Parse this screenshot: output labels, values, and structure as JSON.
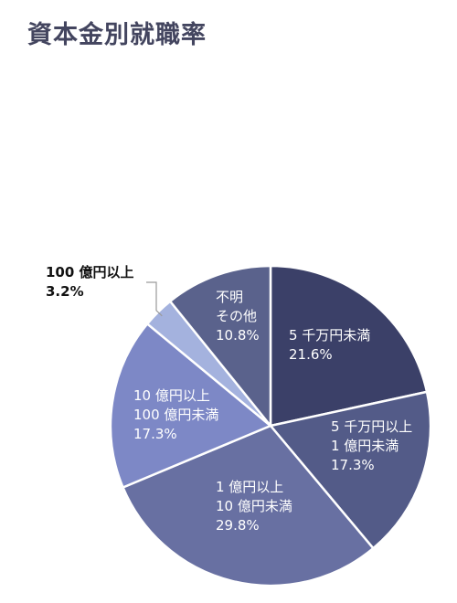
{
  "chart_data": {
    "type": "pie",
    "title": "資本金別就職率",
    "unit": "%",
    "slices": [
      {
        "name": "5千万円未満",
        "label_lines": [
          "5 千万円未満"
        ],
        "value_label": "21.6%",
        "value": 21.6,
        "color": "#3b4068",
        "label_position": "inside"
      },
      {
        "name": "5千万円以上1億円未満",
        "label_lines": [
          "5 千万円以上",
          "1 億円未満"
        ],
        "value_label": "17.3%",
        "value": 17.3,
        "color": "#535b88",
        "label_position": "inside"
      },
      {
        "name": "1億円以上10億円未満",
        "label_lines": [
          "1 億円以上",
          "10 億円未満"
        ],
        "value_label": "29.8%",
        "value": 29.8,
        "color": "#6870a2",
        "label_position": "inside"
      },
      {
        "name": "10億円以上100億円未満",
        "label_lines": [
          "10 億円以上",
          "100 億円未満"
        ],
        "value_label": "17.3%",
        "value": 17.3,
        "color": "#7d88c6",
        "label_position": "inside"
      },
      {
        "name": "100億円以上",
        "label_lines": [
          "100 億円以上"
        ],
        "value_label": "3.2%",
        "value": 3.2,
        "color": "#a4b2de",
        "label_position": "outside"
      },
      {
        "name": "不明その他",
        "label_lines": [
          "不明",
          "その他"
        ],
        "value_label": "10.8%",
        "value": 10.8,
        "color": "#5a628c",
        "label_position": "inside"
      }
    ]
  }
}
